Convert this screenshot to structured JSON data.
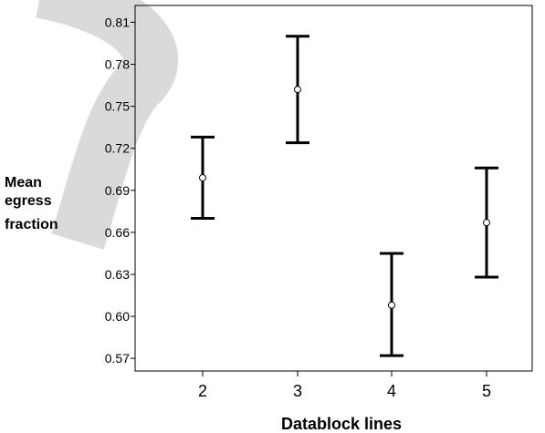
{
  "chart_data": {
    "type": "errorbar",
    "xlabel": "Datablock lines",
    "ylabel": [
      "Mean",
      "egress",
      "fraction"
    ],
    "categories": [
      "2",
      "3",
      "4",
      "5"
    ],
    "yticks": [
      "0.57",
      "0.60",
      "0.63",
      "0.66",
      "0.69",
      "0.72",
      "0.75",
      "0.78",
      "0.81"
    ],
    "ylim": [
      0.561,
      0.822
    ],
    "points": [
      {
        "x": "2",
        "mean": 0.699,
        "lower": 0.67,
        "upper": 0.728
      },
      {
        "x": "3",
        "mean": 0.762,
        "lower": 0.724,
        "upper": 0.8
      },
      {
        "x": "4",
        "mean": 0.608,
        "lower": 0.572,
        "upper": 0.645
      },
      {
        "x": "5",
        "mean": 0.667,
        "lower": 0.628,
        "upper": 0.706
      }
    ],
    "grid": false,
    "colors": {
      "line": "#000000",
      "background_arc": "#d9d9d9"
    }
  }
}
